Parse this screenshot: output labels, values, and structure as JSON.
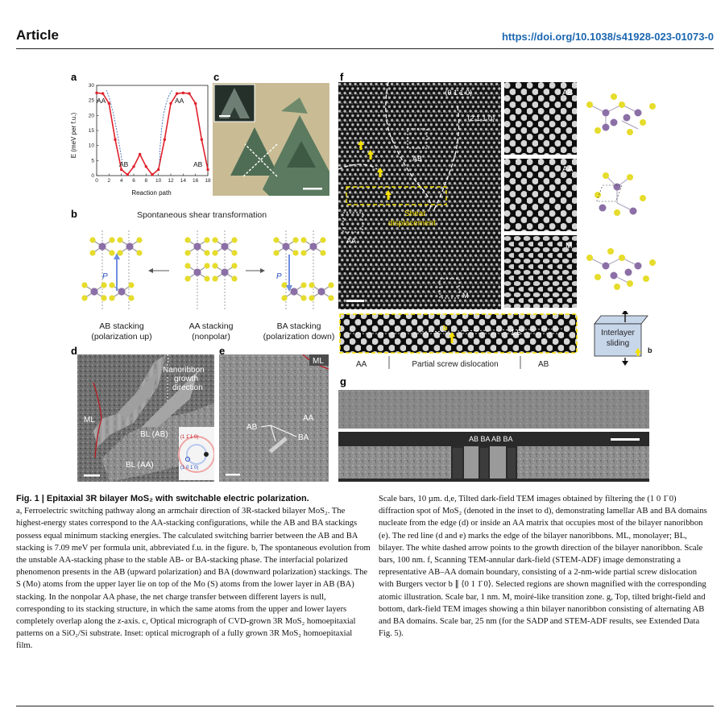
{
  "header": {
    "section": "Article",
    "doi": "https://doi.org/10.1038/s41928-023-01073-0"
  },
  "panels": {
    "a": {
      "label": "a",
      "ylabel": "E (meV per f.u.)",
      "xlabel": "Reaction path",
      "annotations": [
        "AA",
        "AB",
        "AA",
        "AB"
      ]
    },
    "b": {
      "label": "b",
      "title": "Spontaneous shear transformation",
      "p_label": "P",
      "stackings": [
        {
          "name": "AB stacking",
          "desc": "(polarization up)"
        },
        {
          "name": "AA stacking",
          "desc": "(nonpolar)"
        },
        {
          "name": "BA stacking",
          "desc": "(polarization down)"
        }
      ]
    },
    "c": {
      "label": "c"
    },
    "d": {
      "label": "d",
      "annotations": {
        "nanoribbon": "Nanoribbon",
        "growth": "growth",
        "direction": "direction",
        "ml": "ML",
        "bl_ab": "BL (AB)",
        "bl_aa": "BL (AA)",
        "inset1": "(1 1̄ 1 0)",
        "inset2": "(1 0 1̄ 0)"
      }
    },
    "e": {
      "label": "e",
      "annotations": {
        "ml": "ML",
        "aa": "AA",
        "ab": "AB",
        "ba": "BA"
      }
    },
    "f": {
      "label": "f",
      "annotations": {
        "dir1": "⟨0 1̄ 1 0⟩",
        "dir2": "⟨2̄ 1 1 0⟩",
        "ab": "AB",
        "aa": "AA",
        "m": "M",
        "shear1": "Shear",
        "shear2": "displacement",
        "inset_ab": "AB",
        "inset_aa": "AA",
        "inset_m": "M",
        "b_vec": "b",
        "angle": "1.5°",
        "strip_aa": "AA",
        "strip_mid": "Partial screw dislocation",
        "strip_ab": "AB",
        "sliding1": "Interlayer",
        "sliding2": "sliding",
        "sliding_b": "b"
      }
    },
    "g": {
      "label": "g",
      "annotations": "AB BA AB BA"
    }
  },
  "chart_data": {
    "type": "line",
    "x": [
      0,
      1,
      2,
      3,
      4,
      5,
      6,
      7,
      8,
      9,
      10,
      11,
      12,
      13,
      14,
      15,
      16,
      17,
      18
    ],
    "series": [
      {
        "values": [
          27.5,
          27.3,
          24,
          12,
          2,
          0.3,
          3,
          7.1,
          3,
          0.3,
          2,
          12,
          24,
          27.3,
          27.5,
          27.3,
          24,
          12,
          2
        ]
      }
    ],
    "xlabel": "Reaction path",
    "ylabel": "E (meV per f.u.)",
    "xlim": [
      0,
      18
    ],
    "ylim": [
      0,
      30
    ],
    "xticks": [
      0,
      2,
      4,
      6,
      8,
      10,
      12,
      14,
      16,
      18
    ],
    "yticks": [
      0,
      5,
      10,
      15,
      20,
      25,
      30
    ],
    "colors": {
      "line": "#e0202a",
      "arrow": "#2a5da8"
    }
  },
  "caption": {
    "title": "Fig. 1 | Epitaxial 3R bilayer MoS₂ with switchable electric polarization.",
    "left": "a, Ferroelectric switching pathway along an armchair direction of 3R-stacked bilayer MoS₂. The highest-energy states correspond to the AA-stacking configurations, while the AB and BA stackings possess equal minimum stacking energies. The calculated switching barrier between the AB and BA stacking is 7.09 meV per formula unit, abbreviated f.u. in the figure. b, The spontaneous evolution from the unstable AA-stacking phase to the stable AB- or BA-stacking phase. The interfacial polarized phenomenon presents in the AB (upward polarization) and BA (downward polarization) stackings. The S (Mo) atoms from the upper layer lie on top of the Mo (S) atoms from the lower layer in AB (BA) stacking. In the nonpolar AA phase, the net charge transfer between different layers is null, corresponding to its stacking structure, in which the same atoms from the upper and lower layers completely overlap along the z-axis. c, Optical micrograph of CVD-grown 3R MoS₂ homoepitaxial patterns on a SiO₂/Si substrate. Inset: optical micrograph of a fully grown 3R MoS₂ homoepitaxial film.",
    "right": "Scale bars, 10 µm. d,e, Tilted dark-field TEM images obtained by filtering the (1 0 1̄ 0) diffraction spot of MoS₂ (denoted in the inset to d), demonstrating lamellar AB and BA domains nucleate from the edge (d) or inside an AA matrix that occupies most of the bilayer nanoribbon (e). The red line (d and e) marks the edge of the bilayer nanoribbons. ML, monolayer; BL, bilayer. The white dashed arrow points to the growth direction of the bilayer nanoribbon. Scale bars, 100 nm. f, Scanning TEM-annular dark-field (STEM-ADF) image demonstrating a representative AB–AA domain boundary, consisting of a 2-nm-wide partial screw dislocation with Burgers vector b ∥ ⟨0 1 1̄ 0⟩. Selected regions are shown magnified with the corresponding atomic illustration. Scale bar, 1 nm. M, moiré-like transition zone. g, Top, tilted bright-field and bottom, dark-field TEM images showing a thin bilayer nanoribbon consisting of alternating AB and BA domains. Scale bar, 25 nm (for the SADP and STEM-ADF results, see Extended Data Fig. 5)."
  }
}
